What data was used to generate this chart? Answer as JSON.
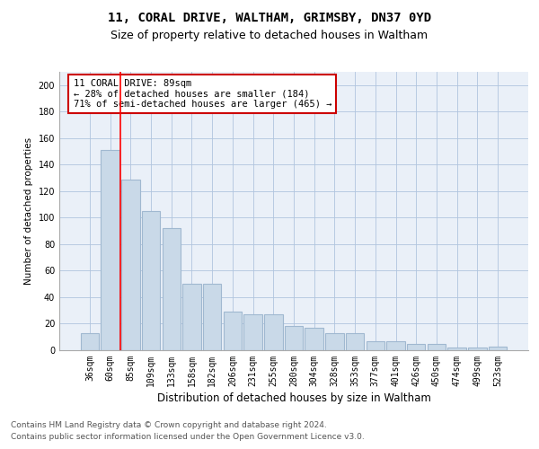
{
  "title": "11, CORAL DRIVE, WALTHAM, GRIMSBY, DN37 0YD",
  "subtitle": "Size of property relative to detached houses in Waltham",
  "xlabel": "Distribution of detached houses by size in Waltham",
  "ylabel": "Number of detached properties",
  "footer1": "Contains HM Land Registry data © Crown copyright and database right 2024.",
  "footer2": "Contains public sector information licensed under the Open Government Licence v3.0.",
  "categories": [
    "36sqm",
    "60sqm",
    "85sqm",
    "109sqm",
    "133sqm",
    "158sqm",
    "182sqm",
    "206sqm",
    "231sqm",
    "255sqm",
    "280sqm",
    "304sqm",
    "328sqm",
    "353sqm",
    "377sqm",
    "401sqm",
    "426sqm",
    "450sqm",
    "474sqm",
    "499sqm",
    "523sqm"
  ],
  "values": [
    13,
    151,
    129,
    105,
    92,
    50,
    50,
    29,
    27,
    27,
    18,
    17,
    13,
    13,
    7,
    7,
    5,
    5,
    2,
    2,
    3
  ],
  "bar_color": "#c9d9e8",
  "bar_edge_color": "#a0b8d0",
  "bar_linewidth": 0.8,
  "grid_color": "#b0c4de",
  "bg_color": "#eaf0f8",
  "annotation_text": "11 CORAL DRIVE: 89sqm\n← 28% of detached houses are smaller (184)\n71% of semi-detached houses are larger (465) →",
  "annotation_box_color": "#ffffff",
  "annotation_box_edge": "#cc0000",
  "red_line_x": 1.5,
  "ylim": [
    0,
    210
  ],
  "yticks": [
    0,
    20,
    40,
    60,
    80,
    100,
    120,
    140,
    160,
    180,
    200
  ],
  "title_fontsize": 10,
  "subtitle_fontsize": 9,
  "xlabel_fontsize": 8.5,
  "ylabel_fontsize": 7.5,
  "tick_fontsize": 7,
  "annotation_fontsize": 7.5,
  "footer_fontsize": 6.5
}
